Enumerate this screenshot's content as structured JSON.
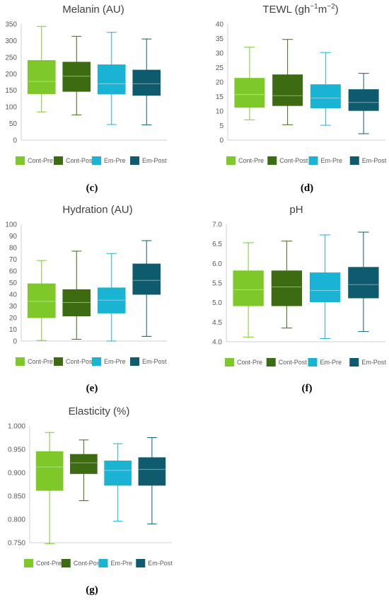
{
  "colors": {
    "Cont-Pre": "#7ec82a",
    "Cont-Post": "#3d6b12",
    "Em-Pre": "#1bb3d4",
    "Em-Post": "#0f5b6e",
    "axis_text": "#595959",
    "title_text": "#404040",
    "axis_line": "#d0d0d0"
  },
  "panel_letters": [
    "(c)",
    "(d)",
    "(e)",
    "(f)",
    "(g)"
  ],
  "chart_data": [
    {
      "type": "box",
      "title": "Melanin (AU)",
      "title_unit": "",
      "panel": "(c)",
      "ylim": [
        0,
        350
      ],
      "yticks": [
        "0",
        "50",
        "100",
        "150",
        "200",
        "250",
        "300",
        "350"
      ],
      "legend": [
        "Cont-Pre",
        "Cont-Post",
        "Em-Pre",
        "Em-Post"
      ],
      "legend_placement": "bottom",
      "series": [
        {
          "name": "Cont-Pre",
          "min": 85,
          "q1": 140,
          "median": 177,
          "q3": 240,
          "max": 343
        },
        {
          "name": "Cont-Post",
          "min": 76,
          "q1": 147,
          "median": 193,
          "q3": 235,
          "max": 313
        },
        {
          "name": "Em-Pre",
          "min": 47,
          "q1": 139,
          "median": 170,
          "q3": 227,
          "max": 325
        },
        {
          "name": "Em-Post",
          "min": 46,
          "q1": 135,
          "median": 170,
          "q3": 211,
          "max": 305
        }
      ]
    },
    {
      "type": "box",
      "title": "TEWL (gh",
      "title_unit": "-1m-2)",
      "title_parts": [
        "TEWL (gh",
        "−1",
        "m",
        "−2",
        ")"
      ],
      "panel": "(d)",
      "ylim": [
        0,
        40
      ],
      "yticks": [
        "0",
        "5",
        "10",
        "15",
        "20",
        "25",
        "30",
        "35",
        "40"
      ],
      "legend": [
        "Cont-Pre",
        "Cont-Post",
        "Em-Pre",
        "Em-Post"
      ],
      "legend_placement": "bottom",
      "series": [
        {
          "name": "Cont-Pre",
          "min": 7,
          "q1": 11.3,
          "median": 15.7,
          "q3": 21.3,
          "max": 32
        },
        {
          "name": "Cont-Post",
          "min": 5.3,
          "q1": 11.9,
          "median": 15.3,
          "q3": 22.5,
          "max": 34.7
        },
        {
          "name": "Em-Pre",
          "min": 5.1,
          "q1": 11.1,
          "median": 14.5,
          "q3": 19.1,
          "max": 30.2
        },
        {
          "name": "Em-Post",
          "min": 2.2,
          "q1": 10.2,
          "median": 13.0,
          "q3": 17.4,
          "max": 23
        }
      ]
    },
    {
      "type": "box",
      "title": "Hydration (AU)",
      "title_unit": "",
      "panel": "(e)",
      "ylim": [
        0,
        100
      ],
      "yticks": [
        "0",
        "10",
        "20",
        "30",
        "40",
        "50",
        "60",
        "70",
        "80",
        "90",
        "100"
      ],
      "legend": [
        "Cont-Pre",
        "Cont-Post",
        "Em-Pre",
        "Em-Post"
      ],
      "legend_placement": "bottom",
      "series": [
        {
          "name": "Cont-Pre",
          "min": 0.5,
          "q1": 20,
          "median": 34,
          "q3": 49,
          "max": 69
        },
        {
          "name": "Cont-Post",
          "min": 1.5,
          "q1": 21.5,
          "median": 33,
          "q3": 44,
          "max": 77
        },
        {
          "name": "Em-Pre",
          "min": 0,
          "q1": 24,
          "median": 35,
          "q3": 45.5,
          "max": 75
        },
        {
          "name": "Em-Post",
          "min": 4,
          "q1": 40,
          "median": 52,
          "q3": 66,
          "max": 86
        }
      ]
    },
    {
      "type": "box",
      "title": "pH",
      "title_unit": "",
      "panel": "(f)",
      "ylim": [
        4.0,
        7.0
      ],
      "yticks": [
        "4.0",
        "4.5",
        "5.0",
        "5.5",
        "6.0",
        "6.5",
        "7.0"
      ],
      "legend": [
        "Cont-Pre",
        "Cont-Post",
        "Em-Pre",
        "Em-Post"
      ],
      "legend_placement": "bottom",
      "series": [
        {
          "name": "Cont-Pre",
          "min": 4.12,
          "q1": 4.92,
          "median": 5.33,
          "q3": 5.81,
          "max": 6.53
        },
        {
          "name": "Cont-Post",
          "min": 4.35,
          "q1": 4.92,
          "median": 5.4,
          "q3": 5.81,
          "max": 6.57
        },
        {
          "name": "Em-Pre",
          "min": 4.08,
          "q1": 5.02,
          "median": 5.31,
          "q3": 5.76,
          "max": 6.73
        },
        {
          "name": "Em-Post",
          "min": 4.26,
          "q1": 5.12,
          "median": 5.46,
          "q3": 5.9,
          "max": 6.8
        }
      ]
    },
    {
      "type": "box",
      "title": "Elasticity (%)",
      "title_unit": "",
      "panel": "(g)",
      "ylim": [
        0.75,
        1.0
      ],
      "yticks": [
        "0.750",
        "0.800",
        "0.850",
        "0.900",
        "0.950",
        "1.000"
      ],
      "legend": [
        "Cont-Pre",
        "Cont-Post",
        "Em-Pre",
        "Em-Post"
      ],
      "legend_placement": "bottom",
      "series": [
        {
          "name": "Cont-Pre",
          "min": 0.748,
          "q1": 0.862,
          "median": 0.912,
          "q3": 0.945,
          "max": 0.986
        },
        {
          "name": "Cont-Post",
          "min": 0.84,
          "q1": 0.898,
          "median": 0.921,
          "q3": 0.939,
          "max": 0.97
        },
        {
          "name": "Em-Pre",
          "min": 0.796,
          "q1": 0.873,
          "median": 0.905,
          "q3": 0.925,
          "max": 0.962
        },
        {
          "name": "Em-Post",
          "min": 0.79,
          "q1": 0.873,
          "median": 0.907,
          "q3": 0.932,
          "max": 0.975
        }
      ]
    }
  ]
}
